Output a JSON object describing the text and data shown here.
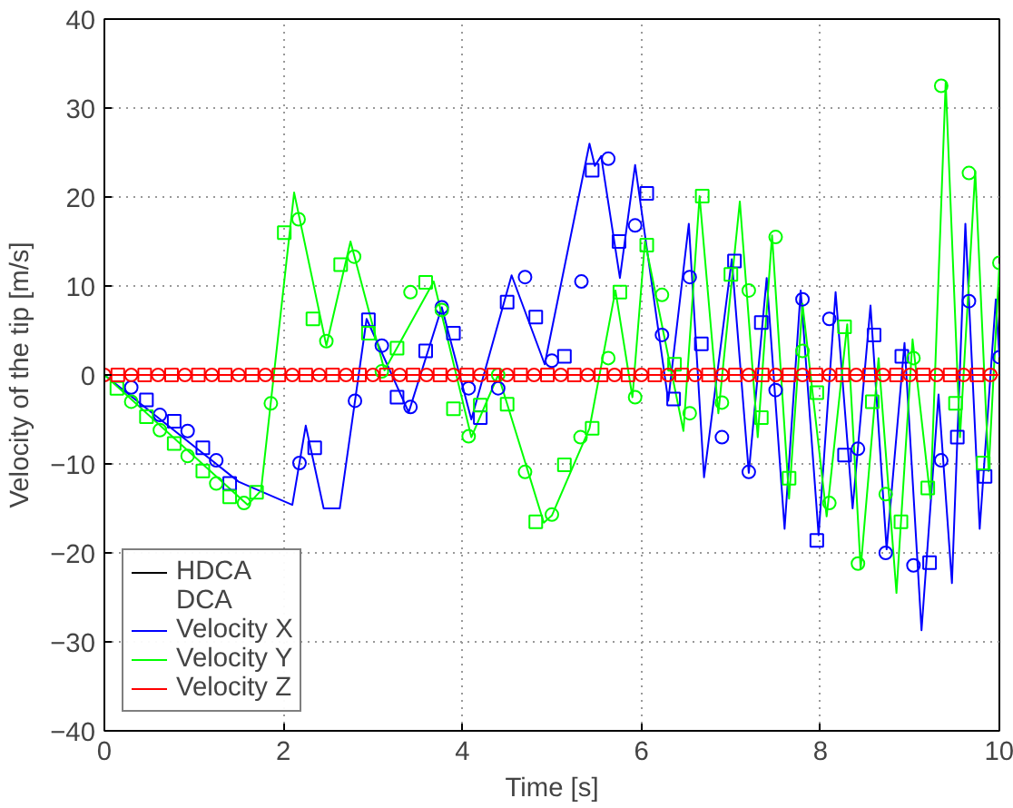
{
  "chart_data": {
    "type": "line",
    "xlabel": "Time [s]",
    "ylabel": "Velocity of the tip [m/s]",
    "xlim": [
      0,
      10
    ],
    "ylim": [
      -40,
      40
    ],
    "xticks": [
      0,
      2,
      4,
      6,
      8,
      10
    ],
    "yticks": [
      -40,
      -30,
      -20,
      -10,
      0,
      10,
      20,
      30,
      40
    ],
    "grid": true,
    "legend": "bottom left",
    "line_style": "solid",
    "annotations": [
      "HDCA",
      "DCA"
    ],
    "series": [
      {
        "name": "Velocity X",
        "color": "#0000ff",
        "x": [
          0,
          1.5,
          2.1,
          2.25,
          2.45,
          2.63,
          2.93,
          3.4,
          3.77,
          4.1,
          4.55,
          4.92,
          5.42,
          5.48,
          5.55,
          5.76,
          5.93,
          6.3,
          6.53,
          6.7,
          7.01,
          7.2,
          7.4,
          7.6,
          7.78,
          7.98,
          8.17,
          8.36,
          8.56,
          8.74,
          8.94,
          9.13,
          9.32,
          9.47,
          9.62,
          9.78,
          9.96,
          10
        ],
        "values": [
          0,
          -12,
          -14.6,
          -5.7,
          -15,
          -15,
          6.3,
          -4.2,
          7.6,
          -5,
          11.2,
          1.2,
          26,
          23.5,
          24.6,
          10.9,
          23.6,
          -2.9,
          17,
          -11.5,
          13,
          -11,
          10.9,
          -17.3,
          9.5,
          -18,
          9.3,
          -15,
          7.8,
          -19.6,
          3.6,
          -28.7,
          -2.2,
          -23.4,
          17,
          -17.3,
          8.5,
          2
        ]
      },
      {
        "name": "Velocity Y",
        "color": "#00ff00",
        "x": [
          0,
          1.6,
          1.75,
          2.12,
          2.48,
          2.75,
          3.13,
          3.68,
          4.1,
          4.4,
          4.91,
          5.0,
          5.42,
          5.71,
          5.9,
          6.04,
          6.47,
          6.65,
          6.86,
          7.1,
          7.3,
          7.46,
          7.65,
          7.8,
          8.07,
          8.3,
          8.45,
          8.65,
          8.85,
          9.03,
          9.23,
          9.4,
          9.56,
          9.73,
          9.88,
          10
        ],
        "values": [
          0,
          -14.6,
          -13,
          20.5,
          3.3,
          15,
          0.5,
          10.5,
          -7,
          0,
          -16.6,
          -15.8,
          -6,
          9.5,
          -2.5,
          15,
          -6.3,
          20.1,
          -4.3,
          19.5,
          -7,
          15.7,
          -13.9,
          8,
          -15.9,
          5.7,
          -21.8,
          1.9,
          -24.5,
          4,
          -13.9,
          32.9,
          -7,
          22.9,
          -10.8,
          12.5
        ]
      },
      {
        "name": "Velocity Z",
        "color": "#ff0000",
        "x": [
          0,
          10
        ],
        "values": [
          0,
          0
        ]
      },
      {
        "type": "scatter",
        "marker": "circle",
        "color": "#0000ff",
        "x": [
          0.3,
          0.62,
          0.93,
          1.25,
          2.18,
          2.8,
          3.1,
          3.42,
          3.77,
          4.07,
          4.4,
          4.7,
          5.0,
          5.33,
          5.63,
          5.93,
          6.23,
          6.54,
          6.9,
          7.2,
          7.5,
          7.8,
          8.1,
          8.42,
          8.73,
          9.04,
          9.35,
          9.66,
          10
        ],
        "values": [
          -1.4,
          -4.5,
          -6.3,
          -9.6,
          -9.9,
          -2.9,
          3.3,
          -3.6,
          7.6,
          -1.5,
          -1.5,
          11,
          1.6,
          10.5,
          24.3,
          16.8,
          4.5,
          11,
          -7,
          -10.9,
          -1.7,
          8.5,
          6.3,
          -8.3,
          -20,
          -21.4,
          -9.6,
          8.3,
          2
        ]
      },
      {
        "type": "scatter",
        "marker": "square",
        "color": "#0000ff",
        "x": [
          0.47,
          0.78,
          1.1,
          1.4,
          2.35,
          2.95,
          3.27,
          3.59,
          3.9,
          4.2,
          4.5,
          4.82,
          5.14,
          5.45,
          5.75,
          6.06,
          6.36,
          6.67,
          7.04,
          7.34,
          7.96,
          8.27,
          8.6,
          8.91,
          9.22,
          9.53,
          9.84
        ],
        "values": [
          -2.8,
          -5.2,
          -8.2,
          -12.2,
          -8.2,
          6.2,
          -2.5,
          2.7,
          4.7,
          -4.8,
          8.2,
          6.5,
          2.1,
          23,
          15,
          20.4,
          -2.7,
          3.5,
          12.8,
          5.9,
          -18.6,
          -9,
          4.5,
          2.1,
          -21.1,
          -7,
          -11.4
        ]
      },
      {
        "type": "scatter",
        "marker": "circle",
        "color": "#00ff00",
        "x": [
          0.3,
          0.62,
          0.93,
          1.25,
          1.56,
          1.86,
          2.17,
          2.48,
          2.79,
          3.1,
          3.42,
          3.77,
          4.07,
          4.4,
          4.7,
          5.0,
          5.32,
          5.63,
          5.93,
          6.23,
          6.54,
          6.9,
          7.2,
          7.5,
          7.8,
          8.1,
          8.42,
          8.73,
          9.04,
          9.35,
          9.66,
          10
        ],
        "values": [
          -3,
          -6.2,
          -9.1,
          -12.2,
          -14.4,
          -3.2,
          17.5,
          3.8,
          13.3,
          0.4,
          9.3,
          7.3,
          -6.9,
          0,
          -10.9,
          -15.7,
          -7,
          1.9,
          -2.5,
          9,
          -4.3,
          -3.1,
          9.5,
          15.5,
          2.7,
          -14.4,
          -21.2,
          -13.4,
          1.9,
          32.5,
          22.7,
          12.6
        ]
      },
      {
        "type": "scatter",
        "marker": "square",
        "color": "#00ff00",
        "x": [
          0.14,
          0.47,
          0.78,
          1.1,
          1.4,
          1.7,
          2.01,
          2.33,
          2.64,
          2.95,
          3.27,
          3.59,
          3.9,
          4.2,
          4.5,
          4.82,
          5.14,
          5.45,
          5.76,
          6.06,
          6.37,
          6.68,
          7.0,
          7.34,
          7.65,
          7.96,
          8.27,
          8.58,
          8.9,
          9.2,
          9.51,
          9.82
        ],
        "values": [
          -1.5,
          -4.7,
          -7.7,
          -10.8,
          -13.7,
          -13.2,
          16,
          6.3,
          12.4,
          4.7,
          3,
          10.4,
          -3.8,
          -3.4,
          -3.3,
          -16.5,
          -10.1,
          -6,
          9.3,
          14.6,
          1.2,
          20.1,
          11.3,
          -4.8,
          -11.6,
          -2,
          5.4,
          -3,
          -16.5,
          -12.7,
          -3.2,
          -9.9
        ]
      },
      {
        "type": "scatter",
        "marker": "circle",
        "color": "#ff0000",
        "x": [
          0,
          0.3,
          0.6,
          0.9,
          1.2,
          1.5,
          1.8,
          2.1,
          2.4,
          2.7,
          3.0,
          3.3,
          3.6,
          3.9,
          4.2,
          4.5,
          4.8,
          5.1,
          5.4,
          5.7,
          6.0,
          6.3,
          6.6,
          6.9,
          7.2,
          7.5,
          7.8,
          8.1,
          8.4,
          8.7,
          9.0,
          9.3,
          9.6,
          9.9
        ],
        "values": [
          0,
          0,
          0,
          0,
          0,
          0,
          0,
          0,
          0,
          0,
          0,
          0,
          0,
          0,
          0,
          0,
          0,
          0,
          0,
          0,
          0,
          0,
          0,
          0,
          0,
          0,
          0,
          0,
          0,
          0,
          0,
          0,
          0,
          0
        ]
      },
      {
        "type": "scatter",
        "marker": "square",
        "color": "#ff0000",
        "x": [
          0.15,
          0.45,
          0.75,
          1.05,
          1.35,
          1.65,
          1.95,
          2.25,
          2.55,
          2.85,
          3.15,
          3.45,
          3.75,
          4.05,
          4.35,
          4.65,
          4.95,
          5.25,
          5.55,
          5.85,
          6.15,
          6.45,
          6.75,
          7.05,
          7.35,
          7.65,
          7.95,
          8.25,
          8.55,
          8.85,
          9.15,
          9.45,
          9.75
        ],
        "values": [
          0,
          0,
          0,
          0,
          0,
          0,
          0,
          0,
          0,
          0,
          0,
          0,
          0,
          0,
          0,
          0,
          0,
          0,
          0,
          0,
          0,
          0,
          0,
          0,
          0,
          0,
          0,
          0,
          0,
          0,
          0,
          0,
          0
        ]
      }
    ]
  }
}
